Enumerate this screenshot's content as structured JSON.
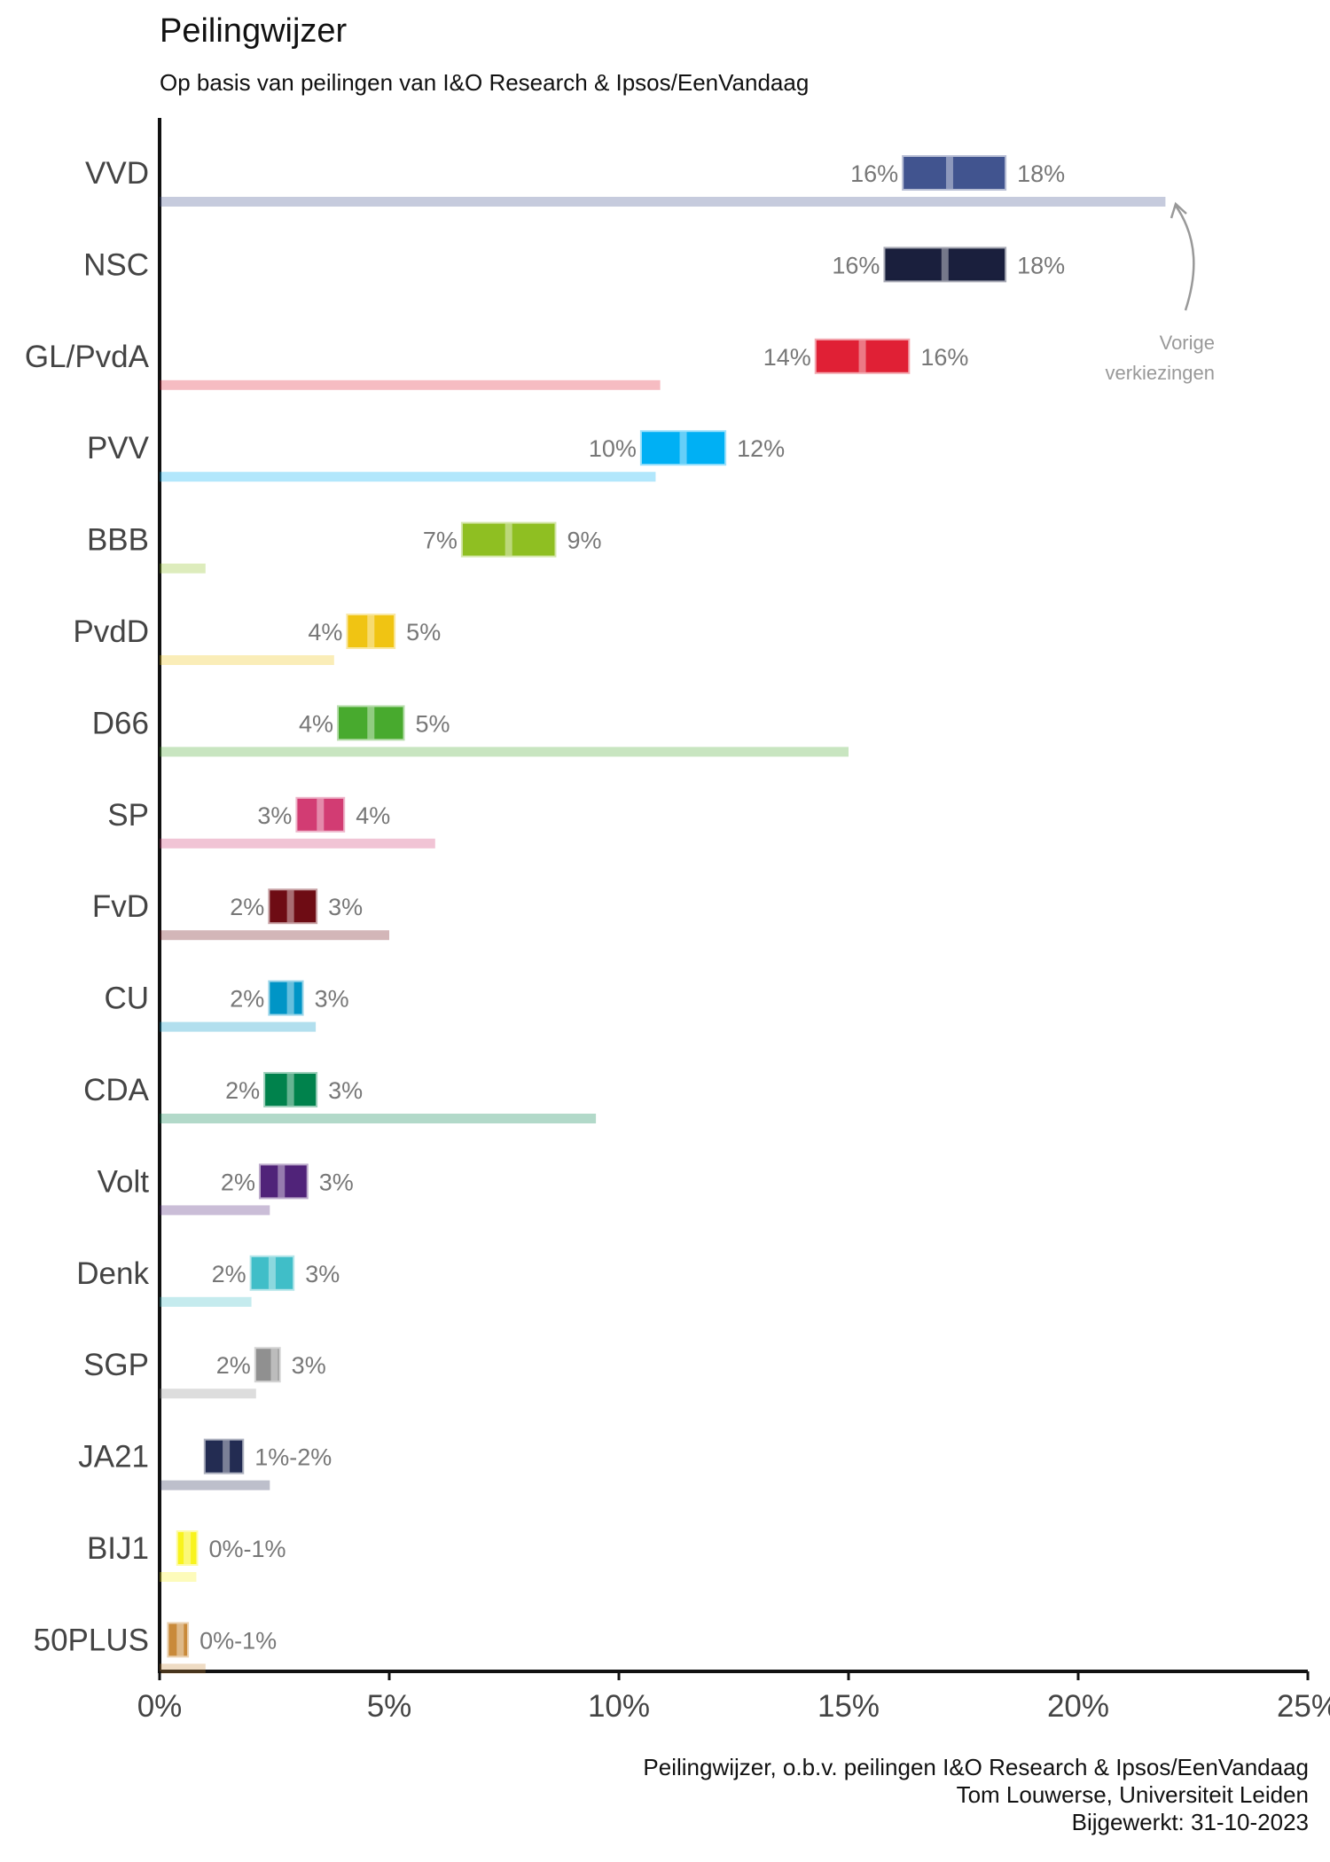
{
  "title": "Peilingwijzer",
  "subtitle": "Op basis van peilingen van I&O Research & Ipsos/EenVandaag",
  "footer": {
    "line1": "Peilingwijzer, o.b.v. peilingen I&O Research & Ipsos/EenVandaag",
    "line2": "Tom Louwerse, Universiteit Leiden",
    "line3": "Bijgewerkt: 31-10-2023"
  },
  "annotation": {
    "line1": "Vorige",
    "line2": "verkiezingen"
  },
  "chart_data": {
    "type": "bar",
    "xlim": [
      0,
      25
    ],
    "x_ticks": [
      0,
      5,
      10,
      15,
      20,
      25
    ],
    "x_tick_labels": [
      "0%",
      "5%",
      "10%",
      "15%",
      "20%",
      "25%"
    ],
    "grid": false,
    "parties": [
      {
        "name": "VVD",
        "low": 16.2,
        "mid": 17.2,
        "high": 18.4,
        "previous": 21.9,
        "low_label": "16%",
        "high_label": "18%",
        "color": "#41548f"
      },
      {
        "name": "NSC",
        "low": 15.8,
        "mid": 17.1,
        "high": 18.4,
        "previous": null,
        "low_label": "16%",
        "high_label": "18%",
        "color": "#1a1f3d"
      },
      {
        "name": "GL/PvdA",
        "low": 14.3,
        "mid": 15.3,
        "high": 16.3,
        "previous": 10.9,
        "low_label": "14%",
        "high_label": "16%",
        "color": "#e02035"
      },
      {
        "name": "PVV",
        "low": 10.5,
        "mid": 11.4,
        "high": 12.3,
        "previous": 10.8,
        "low_label": "10%",
        "high_label": "12%",
        "color": "#00b0f4"
      },
      {
        "name": "BBB",
        "low": 6.6,
        "mid": 7.6,
        "high": 8.6,
        "previous": 1.0,
        "low_label": "7%",
        "high_label": "9%",
        "color": "#8fbf22"
      },
      {
        "name": "PvdD",
        "low": 4.1,
        "mid": 4.6,
        "high": 5.1,
        "previous": 3.8,
        "low_label": "4%",
        "high_label": "5%",
        "color": "#f0c413"
      },
      {
        "name": "D66",
        "low": 3.9,
        "mid": 4.6,
        "high": 5.3,
        "previous": 15.0,
        "low_label": "4%",
        "high_label": "5%",
        "color": "#48aa2e"
      },
      {
        "name": "SP",
        "low": 3.0,
        "mid": 3.5,
        "high": 4.0,
        "previous": 6.0,
        "low_label": "3%",
        "high_label": "4%",
        "color": "#d23c73"
      },
      {
        "name": "FvD",
        "low": 2.4,
        "mid": 2.85,
        "high": 3.4,
        "previous": 5.0,
        "low_label": "2%",
        "high_label": "3%",
        "color": "#6e0c14"
      },
      {
        "name": "CU",
        "low": 2.4,
        "mid": 2.85,
        "high": 3.1,
        "previous": 3.4,
        "low_label": "2%",
        "high_label": "3%",
        "color": "#0095c6"
      },
      {
        "name": "CDA",
        "low": 2.3,
        "mid": 2.85,
        "high": 3.4,
        "previous": 9.5,
        "low_label": "2%",
        "high_label": "3%",
        "color": "#00824c"
      },
      {
        "name": "Volt",
        "low": 2.2,
        "mid": 2.65,
        "high": 3.2,
        "previous": 2.4,
        "low_label": "2%",
        "high_label": "3%",
        "color": "#502379"
      },
      {
        "name": "Denk",
        "low": 2.0,
        "mid": 2.45,
        "high": 2.9,
        "previous": 2.0,
        "low_label": "2%",
        "high_label": "3%",
        "color": "#40bec8"
      },
      {
        "name": "SGP",
        "low": 2.1,
        "mid": 2.5,
        "high": 2.6,
        "previous": 2.1,
        "low_label": "2%",
        "high_label": "3%",
        "color": "#909090"
      },
      {
        "name": "JA21",
        "low": 1.0,
        "mid": 1.45,
        "high": 1.8,
        "previous": 2.4,
        "low_label": "",
        "high_label": "1%-2%",
        "color": "#232c52"
      },
      {
        "name": "BIJ1",
        "low": 0.4,
        "mid": 0.6,
        "high": 0.8,
        "previous": 0.8,
        "low_label": "",
        "high_label": "0%-1%",
        "color": "#f8f31d"
      },
      {
        "name": "50PLUS",
        "low": 0.2,
        "mid": 0.45,
        "high": 0.6,
        "previous": 1.0,
        "low_label": "",
        "high_label": "0%-1%",
        "color": "#c98a3a"
      }
    ]
  }
}
